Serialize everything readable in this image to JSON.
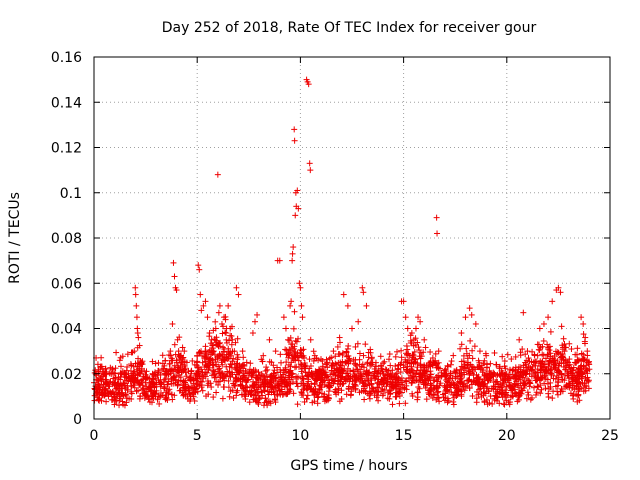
{
  "chart_data": {
    "type": "scatter",
    "title": "Day 252 of 2018, Rate Of TEC Index for receiver gour",
    "xlabel": "GPS time / hours",
    "ylabel": "ROTI / TECUs",
    "xlim": [
      0,
      25
    ],
    "ylim": [
      0,
      0.16
    ],
    "x_ticks": [
      0,
      5,
      10,
      15,
      20,
      25
    ],
    "x_tick_labels": [
      "0",
      "5",
      "10",
      "15",
      "20",
      "25"
    ],
    "y_ticks": [
      0,
      0.02,
      0.04,
      0.06,
      0.08,
      0.1,
      0.12,
      0.14,
      0.16
    ],
    "y_tick_labels": [
      "0",
      "0.02",
      "0.04",
      "0.06",
      "0.08",
      "0.1",
      "0.12",
      "0.14",
      "0.16"
    ],
    "grid": true,
    "marker": "+",
    "marker_color": "#ee0000",
    "series": [
      {
        "name": "ROTI",
        "points": [
          [
            0.1,
            0.027
          ],
          [
            0.15,
            0.012
          ],
          [
            0.3,
            0.018
          ],
          [
            0.4,
            0.014
          ],
          [
            0.5,
            0.02
          ],
          [
            0.6,
            0.016
          ],
          [
            0.7,
            0.01
          ],
          [
            0.9,
            0.012
          ],
          [
            1.1,
            0.008
          ],
          [
            1.3,
            0.01
          ],
          [
            1.5,
            0.006
          ],
          [
            1.7,
            0.009
          ],
          [
            1.8,
            0.012
          ],
          [
            1.9,
            0.02
          ],
          [
            1.95,
            0.03
          ],
          [
            2.0,
            0.058
          ],
          [
            2.02,
            0.055
          ],
          [
            2.05,
            0.05
          ],
          [
            2.08,
            0.045
          ],
          [
            2.1,
            0.04
          ],
          [
            2.12,
            0.038
          ],
          [
            2.15,
            0.036
          ],
          [
            2.2,
            0.02
          ],
          [
            2.3,
            0.025
          ],
          [
            2.5,
            0.016
          ],
          [
            2.7,
            0.014
          ],
          [
            3.0,
            0.018
          ],
          [
            3.3,
            0.022
          ],
          [
            3.5,
            0.02
          ],
          [
            3.7,
            0.03
          ],
          [
            3.8,
            0.042
          ],
          [
            3.85,
            0.069
          ],
          [
            3.9,
            0.063
          ],
          [
            3.95,
            0.058
          ],
          [
            4.0,
            0.057
          ],
          [
            4.05,
            0.035
          ],
          [
            4.1,
            0.03
          ],
          [
            4.3,
            0.022
          ],
          [
            4.5,
            0.025
          ],
          [
            4.7,
            0.02
          ],
          [
            5.0,
            0.028
          ],
          [
            5.05,
            0.068
          ],
          [
            5.1,
            0.066
          ],
          [
            5.15,
            0.055
          ],
          [
            5.2,
            0.048
          ],
          [
            5.3,
            0.05
          ],
          [
            5.4,
            0.052
          ],
          [
            5.5,
            0.045
          ],
          [
            5.6,
            0.038
          ],
          [
            5.7,
            0.035
          ],
          [
            5.8,
            0.03
          ],
          [
            5.9,
            0.04
          ],
          [
            6.0,
            0.108
          ],
          [
            6.05,
            0.047
          ],
          [
            6.1,
            0.05
          ],
          [
            6.2,
            0.042
          ],
          [
            6.3,
            0.045
          ],
          [
            6.4,
            0.038
          ],
          [
            6.5,
            0.05
          ],
          [
            6.6,
            0.04
          ],
          [
            6.7,
            0.035
          ],
          [
            6.8,
            0.03
          ],
          [
            6.9,
            0.058
          ],
          [
            7.0,
            0.055
          ],
          [
            7.2,
            0.03
          ],
          [
            7.4,
            0.025
          ],
          [
            7.7,
            0.038
          ],
          [
            7.8,
            0.043
          ],
          [
            7.9,
            0.046
          ],
          [
            8.2,
            0.028
          ],
          [
            8.5,
            0.035
          ],
          [
            8.8,
            0.03
          ],
          [
            8.9,
            0.07
          ],
          [
            9.0,
            0.07
          ],
          [
            9.2,
            0.045
          ],
          [
            9.3,
            0.04
          ],
          [
            9.4,
            0.035
          ],
          [
            9.5,
            0.05
          ],
          [
            9.55,
            0.052
          ],
          [
            9.6,
            0.07
          ],
          [
            9.62,
            0.073
          ],
          [
            9.65,
            0.076
          ],
          [
            9.7,
            0.128
          ],
          [
            9.72,
            0.123
          ],
          [
            9.75,
            0.09
          ],
          [
            9.78,
            0.1
          ],
          [
            9.8,
            0.094
          ],
          [
            9.85,
            0.101
          ],
          [
            9.9,
            0.093
          ],
          [
            9.95,
            0.06
          ],
          [
            10.0,
            0.058
          ],
          [
            10.05,
            0.05
          ],
          [
            10.1,
            0.045
          ],
          [
            10.3,
            0.15
          ],
          [
            10.35,
            0.149
          ],
          [
            10.4,
            0.148
          ],
          [
            10.45,
            0.113
          ],
          [
            10.48,
            0.11
          ],
          [
            10.5,
            0.035
          ],
          [
            10.7,
            0.028
          ],
          [
            11.0,
            0.02
          ],
          [
            11.3,
            0.025
          ],
          [
            11.6,
            0.03
          ],
          [
            11.9,
            0.036
          ],
          [
            12.1,
            0.055
          ],
          [
            12.3,
            0.05
          ],
          [
            12.5,
            0.04
          ],
          [
            12.8,
            0.043
          ],
          [
            13.0,
            0.058
          ],
          [
            13.05,
            0.056
          ],
          [
            13.2,
            0.05
          ],
          [
            13.5,
            0.025
          ],
          [
            13.8,
            0.02
          ],
          [
            14.2,
            0.016
          ],
          [
            14.6,
            0.015
          ],
          [
            14.9,
            0.052
          ],
          [
            15.0,
            0.052
          ],
          [
            15.1,
            0.045
          ],
          [
            15.2,
            0.04
          ],
          [
            15.4,
            0.038
          ],
          [
            15.5,
            0.035
          ],
          [
            15.6,
            0.04
          ],
          [
            15.7,
            0.045
          ],
          [
            15.8,
            0.043
          ],
          [
            16.0,
            0.035
          ],
          [
            16.3,
            0.025
          ],
          [
            16.6,
            0.089
          ],
          [
            16.62,
            0.082
          ],
          [
            16.7,
            0.03
          ],
          [
            17.0,
            0.02
          ],
          [
            17.4,
            0.016
          ],
          [
            17.8,
            0.038
          ],
          [
            18.0,
            0.045
          ],
          [
            18.2,
            0.049
          ],
          [
            18.3,
            0.046
          ],
          [
            18.5,
            0.042
          ],
          [
            18.7,
            0.03
          ],
          [
            19.0,
            0.028
          ],
          [
            19.4,
            0.02
          ],
          [
            19.8,
            0.016
          ],
          [
            20.2,
            0.018
          ],
          [
            20.6,
            0.035
          ],
          [
            20.8,
            0.047
          ],
          [
            21.0,
            0.03
          ],
          [
            21.3,
            0.025
          ],
          [
            21.6,
            0.04
          ],
          [
            21.8,
            0.042
          ],
          [
            22.0,
            0.045
          ],
          [
            22.2,
            0.052
          ],
          [
            22.4,
            0.057
          ],
          [
            22.5,
            0.058
          ],
          [
            22.6,
            0.056
          ],
          [
            22.8,
            0.03
          ],
          [
            23.0,
            0.02
          ],
          [
            23.3,
            0.025
          ],
          [
            23.6,
            0.045
          ],
          [
            23.7,
            0.042
          ],
          [
            23.8,
            0.036
          ],
          [
            23.9,
            0.03
          ],
          [
            24.0,
            0.022
          ]
        ],
        "background_points": {
          "count": 2600,
          "x_range": [
            0,
            24
          ],
          "note": "dense band of low ROTI values, mostly 0.005 to 0.025 TECU/s"
        }
      }
    ]
  }
}
